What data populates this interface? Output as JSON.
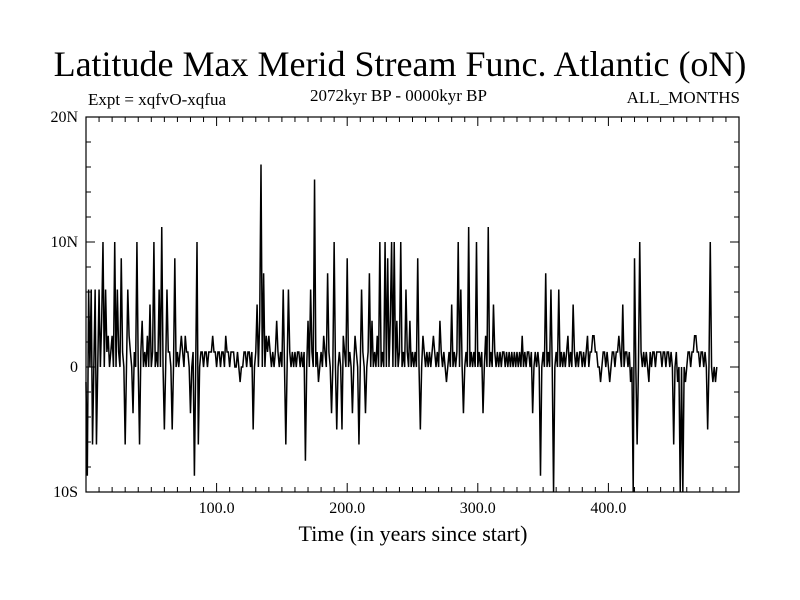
{
  "header": {
    "title": "Latitude Max Merid Stream Func. Atlantic (oN)",
    "expt": "Expt = xqfvO-xqfua",
    "period": "2072kyr BP - 0000kyr BP",
    "months": "ALL_MONTHS"
  },
  "chart_data": {
    "type": "line",
    "title": "Latitude Max Merid Stream Func. Atlantic (oN)",
    "xlabel": "Time (in years since start)",
    "ylabel": "",
    "xlim": [
      0,
      500
    ],
    "ylim": [
      -10,
      20
    ],
    "x_ticks": [
      {
        "value": 100,
        "label": "100.0"
      },
      {
        "value": 200,
        "label": "200.0"
      },
      {
        "value": 300,
        "label": "300.0"
      },
      {
        "value": 400,
        "label": "400.0"
      }
    ],
    "y_ticks": [
      {
        "value": 20,
        "label": "20N"
      },
      {
        "value": 10,
        "label": "10N"
      },
      {
        "value": 0,
        "label": "0"
      },
      {
        "value": -10,
        "label": "10S"
      }
    ],
    "x_minor_step": 10,
    "y_minor_step": 2,
    "grid": false,
    "series": [
      {
        "color": "#000000",
        "x_start": 0,
        "x_step": 1,
        "values": [
          -1.2,
          -8.7,
          6.2,
          0,
          6.2,
          -6.2,
          0,
          6.2,
          -6.2,
          0,
          6.2,
          0,
          3.7,
          10,
          0,
          6.2,
          1.2,
          2.5,
          0,
          1.2,
          2.5,
          0,
          10,
          0,
          6.2,
          1.2,
          0,
          8.7,
          1.2,
          0,
          -6.2,
          0,
          6.2,
          2.5,
          1.2,
          0,
          -3.7,
          1.2,
          0,
          10,
          0,
          -6.2,
          1.2,
          3.7,
          0,
          1.2,
          0,
          2.5,
          0,
          5.0,
          0,
          1.2,
          10,
          0,
          1.2,
          0,
          6.2,
          0,
          11.2,
          0,
          -5.0,
          0,
          6.2,
          1.2,
          1.2,
          0,
          -5.0,
          0,
          8.7,
          0,
          1.2,
          0,
          1.2,
          2.5,
          1.2,
          0,
          2.5,
          1.2,
          1.2,
          0,
          -3.7,
          0,
          1.2,
          -8.7,
          0,
          10,
          -6.2,
          0,
          1.2,
          1.2,
          0,
          1.2,
          1.2,
          0,
          1.2,
          1.2,
          1.2,
          2.5,
          1.2,
          1.2,
          0,
          1.2,
          1.2,
          0,
          1.2,
          1.2,
          0,
          2.5,
          1.2,
          1.2,
          0,
          1.2,
          1.2,
          1.2,
          0,
          0,
          1.2,
          0,
          -1.2,
          0,
          0,
          1.2,
          1.2,
          0,
          1.2,
          1.2,
          0,
          1.2,
          -5.0,
          0,
          1.2,
          5.0,
          0,
          3.7,
          16.2,
          0,
          7.5,
          0,
          2.5,
          1.2,
          2.5,
          1.2,
          0,
          1.2,
          0,
          1.2,
          3.7,
          1.2,
          0,
          1.2,
          0,
          6.2,
          0,
          -6.2,
          0,
          6.2,
          1.2,
          0,
          1.2,
          0,
          1.2,
          0,
          1.2,
          1.2,
          0,
          1.2,
          0,
          1.2,
          -7.5,
          0,
          3.7,
          0,
          6.2,
          1.2,
          0,
          15.0,
          0,
          1.2,
          -1.2,
          0,
          1.2,
          0,
          2.5,
          1.2,
          0,
          7.5,
          1.2,
          0,
          -3.7,
          0,
          10,
          0,
          -5.0,
          0,
          1.2,
          0,
          -5.0,
          2.5,
          1.2,
          0,
          8.7,
          0,
          1.2,
          0,
          -3.7,
          0,
          2.5,
          1.2,
          0,
          -6.2,
          0,
          6.2,
          1.2,
          0,
          -3.7,
          0,
          1.2,
          7.5,
          0,
          3.7,
          0,
          1.2,
          0,
          2.5,
          0,
          10,
          0,
          1.2,
          0,
          10,
          0,
          8.7,
          0,
          3.7,
          10,
          0,
          10,
          0,
          3.7,
          0,
          1.2,
          10,
          0,
          1.2,
          0,
          6.2,
          1.2,
          0,
          3.7,
          0,
          1.2,
          0,
          1.2,
          0,
          8.7,
          0,
          -5.0,
          0,
          2.5,
          1.2,
          0,
          1.2,
          0,
          1.2,
          0,
          1.2,
          2.5,
          1.2,
          0,
          1.2,
          0,
          3.7,
          1.2,
          0,
          1.2,
          0,
          -1.2,
          0,
          1.2,
          0,
          5.0,
          0,
          1.2,
          0,
          1.2,
          10,
          0,
          6.2,
          0,
          -3.7,
          0,
          1.2,
          0,
          11.2,
          0,
          1.2,
          0,
          1.2,
          0,
          10,
          0,
          1.2,
          0,
          1.2,
          -3.7,
          0,
          2.5,
          0,
          11.2,
          0,
          1.2,
          0,
          5.0,
          1.2,
          0,
          1.2,
          0,
          1.2,
          0,
          1.2,
          1.2,
          0,
          1.2,
          0,
          1.2,
          0,
          1.2,
          0,
          1.2,
          0,
          1.2,
          0,
          1.2,
          0,
          2.5,
          0,
          1.2,
          0,
          1.2,
          1.2,
          0,
          1.2,
          -3.7,
          0,
          1.2,
          0,
          1.2,
          0,
          -8.7,
          0,
          1.2,
          0,
          7.5,
          0,
          1.2,
          0,
          6.2,
          0,
          -10,
          0,
          1.2,
          0,
          6.2,
          0,
          1.2,
          0,
          1.2,
          0,
          1.2,
          2.5,
          0,
          1.2,
          0,
          5.0,
          1.2,
          0,
          1.2,
          0,
          1.2,
          1.2,
          0,
          1.2,
          0,
          1.2,
          2.5,
          0,
          1.2,
          1.2,
          2.5,
          2.5,
          1.2,
          1.2,
          0,
          0,
          -1.2,
          0,
          1.2,
          1.2,
          0,
          1.2,
          0,
          -1.2,
          0,
          1.2,
          1.2,
          0,
          1.2,
          1.2,
          2.5,
          1.2,
          0,
          5.0,
          0,
          1.2,
          1.2,
          0,
          1.2,
          -1.2,
          0,
          -10,
          8.7,
          0,
          -6.2,
          0,
          10,
          1.2,
          0,
          1.2,
          0,
          1.2,
          0,
          -1.2,
          1.2,
          0,
          1.2,
          1.2,
          0,
          1.2,
          1.2,
          1.2,
          1.2,
          0,
          1.2,
          1.2,
          0,
          1.2,
          1.2,
          0,
          1.2,
          0,
          -6.2,
          0,
          1.2,
          -1.2,
          0,
          -10,
          0,
          -10,
          0,
          -1.2,
          0,
          1.2,
          1.2,
          0,
          1.2,
          1.2,
          2.5,
          2.5,
          1.2,
          1.2,
          0,
          1.2,
          1.2,
          0,
          1.2,
          0,
          -5.0,
          0,
          10,
          0,
          -1.2,
          0,
          -1.2,
          0
        ]
      }
    ]
  }
}
